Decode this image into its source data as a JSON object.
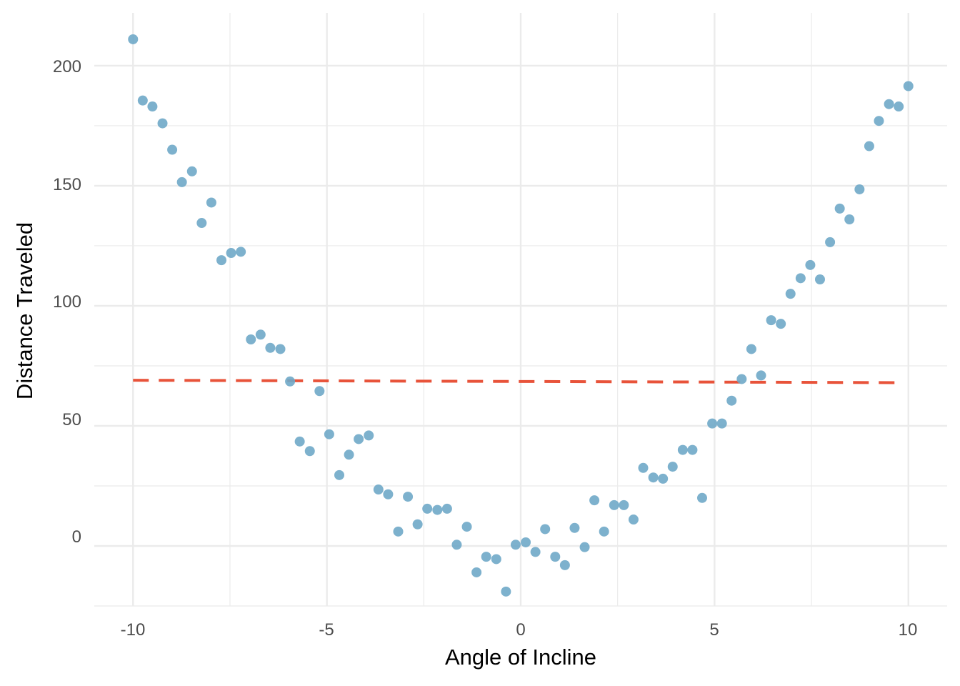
{
  "chart_data": {
    "type": "scatter",
    "title": "",
    "xlabel": "Angle of Incline",
    "ylabel": "Distance Traveled",
    "xlim": [
      -11,
      11
    ],
    "ylim": [
      -25,
      222
    ],
    "x_ticks": [
      -10,
      -5,
      0,
      5,
      10
    ],
    "x_tick_labels": [
      "-10",
      "-5",
      "0",
      "5",
      "10"
    ],
    "y_ticks": [
      0,
      50,
      100,
      150,
      200
    ],
    "y_tick_labels": [
      "0",
      "50",
      "100",
      "150",
      "200"
    ],
    "grid": true,
    "legend": "none",
    "colors": {
      "points": "#6fa8c8",
      "fit_line": "#e8533a",
      "grid": "#ebebeb"
    },
    "series": [
      {
        "kind": "points",
        "x": [
          -10.0,
          -9.75,
          -9.5,
          -9.24,
          -8.99,
          -8.74,
          -8.48,
          -8.23,
          -7.98,
          -7.72,
          -7.47,
          -7.22,
          -6.96,
          -6.71,
          -6.46,
          -6.2,
          -5.95,
          -5.7,
          -5.44,
          -5.19,
          -4.94,
          -4.68,
          -4.43,
          -4.18,
          -3.92,
          -3.67,
          -3.42,
          -3.16,
          -2.91,
          -2.66,
          -2.41,
          -2.15,
          -1.9,
          -1.65,
          -1.39,
          -1.14,
          -0.89,
          -0.63,
          -0.38,
          -0.13,
          0.13,
          0.38,
          0.63,
          0.89,
          1.14,
          1.39,
          1.65,
          1.9,
          2.15,
          2.41,
          2.66,
          2.91,
          3.16,
          3.42,
          3.67,
          3.92,
          4.18,
          4.43,
          4.68,
          4.94,
          5.19,
          5.44,
          5.7,
          5.95,
          6.2,
          6.46,
          6.71,
          6.96,
          7.22,
          7.47,
          7.72,
          7.98,
          8.23,
          8.48,
          8.74,
          8.99,
          9.24,
          9.5,
          9.75,
          10.0
        ],
        "y": [
          211,
          185.5,
          183,
          176,
          165,
          151.5,
          156,
          134.5,
          143,
          119,
          122,
          122.5,
          86,
          88,
          82.5,
          82,
          68.5,
          43.5,
          39.5,
          64.5,
          46.5,
          29.5,
          38,
          44.5,
          46,
          23.5,
          21.5,
          6,
          20.5,
          9,
          15.5,
          15,
          15.5,
          0.5,
          8,
          -11,
          -4.5,
          -5.5,
          -19,
          0.5,
          1.5,
          -2.5,
          7,
          -4.5,
          -8,
          7.5,
          -0.5,
          19,
          6,
          17,
          17,
          11,
          32.5,
          28.5,
          28,
          33,
          40,
          40,
          20,
          51,
          51,
          60.5,
          69.5,
          82,
          71,
          94,
          92.5,
          105,
          111.5,
          117,
          111,
          126.5,
          140.5,
          136,
          148.5,
          166.5,
          177,
          184,
          183,
          191.5
        ]
      },
      {
        "kind": "fit_line",
        "style": "dashed",
        "x": [
          -10,
          9.85
        ],
        "y": [
          69,
          68
        ]
      }
    ]
  }
}
